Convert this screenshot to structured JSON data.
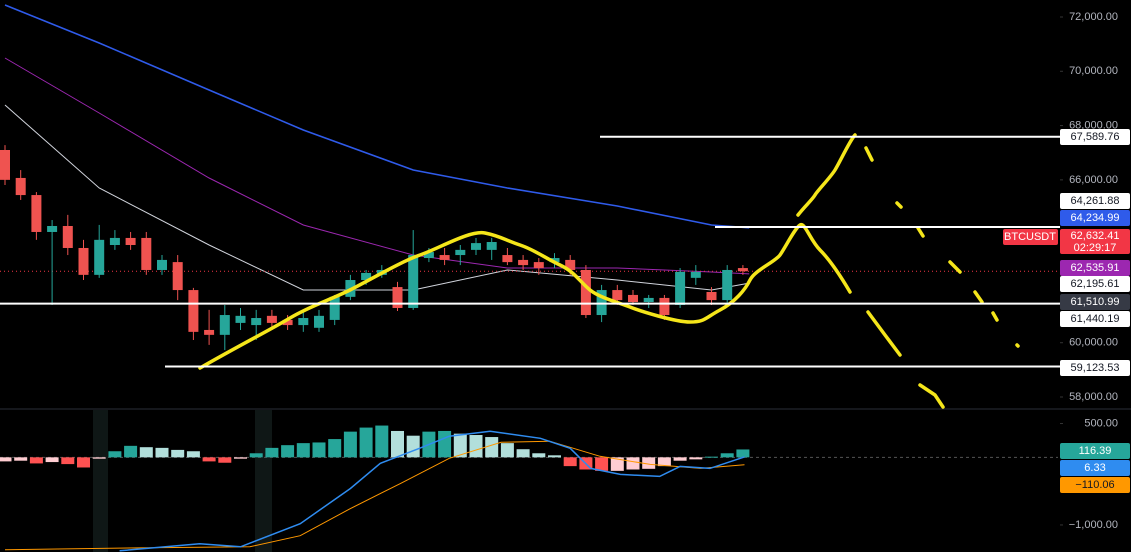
{
  "chart_data": {
    "type": "candlestick",
    "symbol": "BTCUSDT",
    "ylim": [
      57595,
      72626
    ],
    "yticks": [
      {
        "value": 72000,
        "label": "72,000.00"
      },
      {
        "value": 70000,
        "label": "70,000.00"
      },
      {
        "value": 68000,
        "label": "68,000.00"
      },
      {
        "value": 66000,
        "label": "66,000.00"
      },
      {
        "value": 60000,
        "label": "60,000.00"
      },
      {
        "value": 58000,
        "label": "58,000.00"
      }
    ],
    "up_color": "#26a69a",
    "down_color": "#ef5350",
    "ohlc": [
      [
        67100,
        67280,
        65810,
        66000
      ],
      [
        66070,
        66360,
        65260,
        65440
      ],
      [
        65440,
        65550,
        63790,
        64080
      ],
      [
        64080,
        64520,
        61390,
        64300
      ],
      [
        64300,
        64710,
        63230,
        63490
      ],
      [
        63490,
        63790,
        62310,
        62500
      ],
      [
        62500,
        64340,
        62390,
        63790
      ],
      [
        63600,
        64150,
        63420,
        63860
      ],
      [
        63860,
        64080,
        63420,
        63600
      ],
      [
        63860,
        64080,
        62500,
        62680
      ],
      [
        62680,
        63230,
        62500,
        63050
      ],
      [
        62970,
        63230,
        61570,
        61940
      ],
      [
        61940,
        62020,
        60100,
        60400
      ],
      [
        60470,
        61210,
        59920,
        60290
      ],
      [
        60290,
        61390,
        59730,
        61020
      ],
      [
        60730,
        61280,
        60470,
        60990
      ],
      [
        60650,
        61210,
        60100,
        60910
      ],
      [
        60990,
        61210,
        60470,
        60730
      ],
      [
        60840,
        61020,
        60470,
        60650
      ],
      [
        60650,
        61130,
        60400,
        60910
      ],
      [
        60550,
        61210,
        60400,
        60990
      ],
      [
        60840,
        61760,
        60650,
        61690
      ],
      [
        61690,
        62500,
        61570,
        62310
      ],
      [
        62310,
        62680,
        62130,
        62570
      ],
      [
        62500,
        62860,
        62390,
        62680
      ],
      [
        62050,
        62240,
        61170,
        61280
      ],
      [
        61280,
        64150,
        61210,
        63230
      ],
      [
        63120,
        63490,
        62970,
        63340
      ],
      [
        63230,
        63490,
        62860,
        63050
      ],
      [
        63230,
        63600,
        62860,
        63420
      ],
      [
        63420,
        63860,
        63230,
        63670
      ],
      [
        63420,
        63860,
        63050,
        63710
      ],
      [
        63230,
        63490,
        62860,
        62970
      ],
      [
        63050,
        63230,
        62680,
        62860
      ],
      [
        62970,
        63120,
        62500,
        62750
      ],
      [
        62970,
        63300,
        62750,
        63120
      ],
      [
        63050,
        63230,
        62500,
        62680
      ],
      [
        62680,
        62860,
        60910,
        61020
      ],
      [
        61020,
        62130,
        60760,
        61940
      ],
      [
        61940,
        62130,
        61390,
        61570
      ],
      [
        61760,
        61940,
        61390,
        61500
      ],
      [
        61500,
        61760,
        61280,
        61650
      ],
      [
        61650,
        61760,
        60840,
        61020
      ],
      [
        61390,
        62750,
        61280,
        62610
      ],
      [
        62390,
        62860,
        62130,
        62610
      ],
      [
        61870,
        62050,
        61390,
        61570
      ],
      [
        61570,
        62860,
        61390,
        62680
      ],
      [
        62750,
        62860,
        62500,
        62632.41
      ]
    ],
    "moving_averages": [
      {
        "color": "#2f5bea",
        "x": [
          0,
          6,
          13,
          19,
          26,
          32,
          39,
          45,
          47.4
        ],
        "values": [
          72442,
          71042,
          69311,
          67837,
          66363,
          65700,
          65037,
          64337,
          64234.99
        ]
      },
      {
        "color": "#9c27b0",
        "x": [
          0,
          6,
          13,
          19,
          26,
          32,
          39,
          45,
          47.4
        ],
        "values": [
          70490,
          68463,
          66068,
          64337,
          63232,
          62753,
          62753,
          62606,
          62535.91
        ]
      },
      {
        "color": "#d1d4dc",
        "x": [
          0,
          6,
          13,
          19,
          26,
          32,
          39,
          45,
          47.4
        ],
        "values": [
          68758,
          65700,
          63600,
          61943,
          61943,
          62680,
          62311,
          61943,
          62195.61
        ]
      }
    ],
    "levels": [
      {
        "value": 67589.76,
        "label": "67,589.76"
      },
      {
        "value": 64261.88,
        "label": "64,261.88"
      },
      {
        "value": 61440.19,
        "label": "61,440.19"
      },
      {
        "value": 59123.53,
        "label": "59,123.53"
      }
    ],
    "price_labels": [
      {
        "value": 64234.99,
        "label": "64,234.99",
        "bg": "#2f5bea",
        "fg": "#ffffff"
      },
      {
        "value": 62535.91,
        "label": "62,535.91",
        "bg": "#9c27b0",
        "fg": "#ffffff"
      },
      {
        "value": 62195.61,
        "label": "62,195.61",
        "bg": "#ffffff",
        "fg": "#131722"
      },
      {
        "value": 61510.99,
        "label": "61,510.99",
        "bg": "#363a45",
        "fg": "#ffffff"
      }
    ],
    "last_price": {
      "value": 62632.41,
      "label": "62,632.41",
      "countdown": "02:29:17",
      "color": "#f23645"
    },
    "macd": {
      "ylim": [
        -1400,
        700
      ],
      "yticks": [
        {
          "value": 500,
          "label": "500.00"
        },
        {
          "value": -1000,
          "label": "−1,000.00"
        }
      ],
      "histogram_colors": [
        "#26a69a",
        "#b2dfdb",
        "#ff5252",
        "#ffcdd2"
      ],
      "histogram": [
        -60,
        -50,
        -90,
        -70,
        -100,
        -150,
        -20,
        90,
        170,
        150,
        140,
        110,
        90,
        -60,
        -80,
        -20,
        60,
        140,
        180,
        210,
        220,
        270,
        380,
        440,
        470,
        390,
        320,
        380,
        390,
        350,
        330,
        300,
        210,
        120,
        60,
        30,
        -130,
        -180,
        -200,
        -200,
        -180,
        -170,
        -130,
        -50,
        -30,
        10,
        60,
        116.39
      ],
      "macd_line": {
        "color": "#2f8cf0",
        "x": [
          7.3,
          12.4,
          15,
          18.8,
          22,
          23.9,
          26.4,
          28.3,
          30.9,
          34.1,
          36,
          37.3,
          39.2,
          41.7,
          43,
          44.9,
          47.1
        ],
        "values": [
          -1382,
          -1278,
          -1323,
          -981,
          -461,
          -89,
          134,
          312,
          386,
          282,
          134,
          -163,
          -253,
          -282,
          -134,
          -163,
          6.33
        ]
      },
      "signal_line": {
        "color": "#ff9800",
        "x": [
          0,
          9.2,
          15.6,
          18.8,
          22,
          25.2,
          28.3,
          31.6,
          34.7,
          37.9,
          41.1,
          44.3,
          47.1
        ],
        "values": [
          -1367,
          -1337,
          -1323,
          -1159,
          -758,
          -386,
          -15,
          223,
          238,
          15,
          -104,
          -163,
          -110.06
        ]
      },
      "labels": [
        {
          "value": 116.39,
          "label": "116.39",
          "bg": "#26a69a",
          "fg": "#ffffff"
        },
        {
          "value": 6.33,
          "label": "6.33",
          "bg": "#2f8cf0",
          "fg": "#ffffff"
        },
        {
          "value": -110.06,
          "label": "−110.06",
          "bg": "#ff9800",
          "fg": "#131722"
        }
      ]
    }
  }
}
